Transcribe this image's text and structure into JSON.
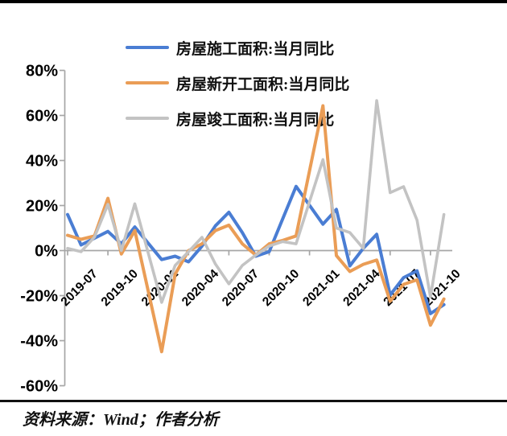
{
  "source": {
    "text": "资料来源：Wind；作者分析"
  },
  "chart_data": {
    "type": "line",
    "title": "",
    "legend_position": "top-center",
    "grid": false,
    "x_axis": {
      "months": [
        "2019-07",
        "2019-08",
        "2019-09",
        "2019-10",
        "2019-11",
        "2019-12",
        "2020-01",
        "2020-02",
        "2020-03",
        "2020-04",
        "2020-05",
        "2020-06",
        "2020-07",
        "2020-08",
        "2020-09",
        "2020-10",
        "2020-11",
        "2020-12",
        "2021-01",
        "2021-02",
        "2021-03",
        "2021-04",
        "2021-05",
        "2021-06",
        "2021-07",
        "2021-08",
        "2021-09",
        "2021-10",
        "2021-11"
      ],
      "tick_labels": [
        "2019-07",
        "2019-10",
        "2020-01",
        "2020-04",
        "2020-07",
        "2020-10",
        "2021-01",
        "2021-04",
        "2021-07",
        "2021-10"
      ],
      "label_every_n_months": 3
    },
    "y_axis": {
      "labels": [
        "80%",
        "60%",
        "40%",
        "20%",
        "0%",
        "-20%",
        "-40%",
        "-60%"
      ],
      "values": [
        80,
        60,
        40,
        20,
        0,
        -20,
        -40,
        -60
      ],
      "ylim": [
        -60,
        80
      ],
      "unit": "%"
    },
    "axis_color": "#A6A6A6",
    "label_color": "#000000",
    "series": [
      {
        "name": "房屋施工面积:当月同比",
        "color": "#4A7DD3",
        "width": 4,
        "values": [
          16,
          2.5,
          5.5,
          8.5,
          3,
          10.5,
          null,
          -4,
          -2.5,
          -5,
          2,
          11,
          17,
          8,
          -2.5,
          -0.5,
          14,
          28.5,
          null,
          11.7,
          18.3,
          -6.8,
          1,
          7.2,
          -19.7,
          -12,
          -9,
          -28,
          -24
        ]
      },
      {
        "name": "房屋新开工面积:当月同比",
        "color": "#EA9D56",
        "width": 4,
        "values": [
          6.8,
          5,
          6.5,
          23.2,
          -1.5,
          8.9,
          null,
          -44.9,
          -10.5,
          0,
          3,
          8.9,
          11.3,
          3,
          -2,
          3,
          4.5,
          6.5,
          null,
          64.3,
          -2.2,
          -9.3,
          -6.1,
          -4.2,
          -22.5,
          -15,
          -13,
          -33.1,
          -21.5
        ]
      },
      {
        "name": "房屋竣工面积:当月同比",
        "color": "#C3C3C3",
        "width": 3.6,
        "values": [
          1,
          -0.5,
          6,
          20.5,
          0,
          20.8,
          null,
          -23,
          -6.6,
          -0.5,
          5.9,
          -6,
          -14.8,
          -6.6,
          -2,
          2,
          4,
          3,
          null,
          40.4,
          10,
          8,
          1,
          66.6,
          25.7,
          28.4,
          13.5,
          -20.6,
          16
        ]
      }
    ],
    "notes": "monthly YoY, Jan values merged into Feb (gaps interpolated)"
  }
}
